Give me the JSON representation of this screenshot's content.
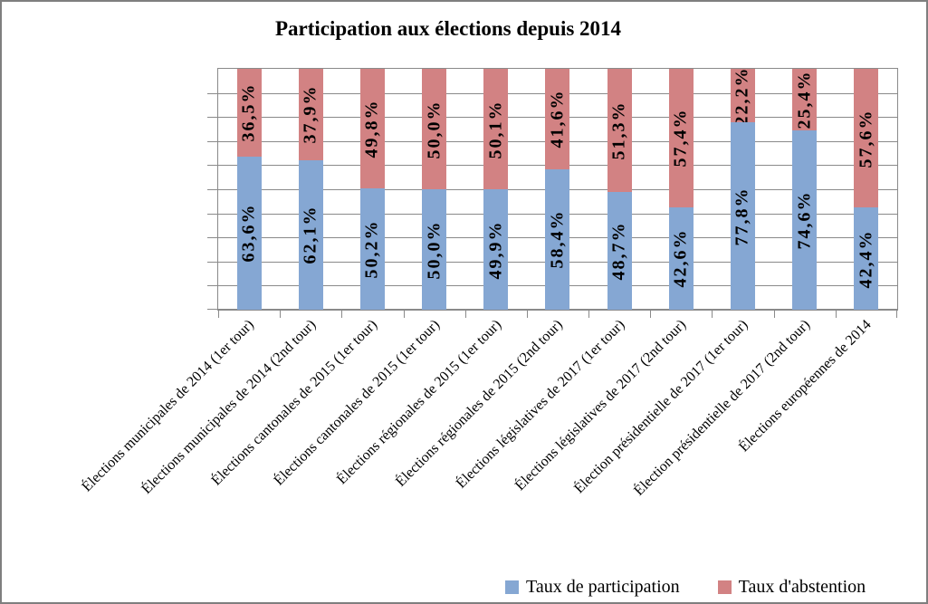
{
  "title": "Participation aux élections depuis 2014",
  "legend": [
    {
      "label": "Taux de participation",
      "color": "#85a7d3"
    },
    {
      "label": "Taux d'abstention",
      "color": "#d28283"
    }
  ],
  "chart_data": {
    "type": "bar",
    "stacked": true,
    "title": "Participation aux élections depuis 2014",
    "xlabel": "",
    "ylabel": "",
    "ylim": [
      0,
      100
    ],
    "gridline_step": 10,
    "grid": true,
    "legend_position": "bottom",
    "categories": [
      "Élections municipales de 2014 (1er tour)",
      "Élections municipales de 2014 (2nd tour)",
      "Élections cantonales de 2015 (1er tour)",
      "Élections cantonales de 2015 (1er tour)",
      "Élections régionales de 2015 (1er tour)",
      "Élections régionales de 2015 (2nd tour)",
      "Élections législatives de 2017 (1er tour)",
      "Élections législatives de 2017 (2nd tour)",
      "Élection présidentielle de 2017 (1er tour)",
      "Élection présidentielle de 2017 (2nd tour)",
      "Élections européennes de 2014"
    ],
    "series": [
      {
        "name": "Taux de participation",
        "color": "#85a7d3",
        "values": [
          63.6,
          62.1,
          50.2,
          50.0,
          49.9,
          58.4,
          48.7,
          42.6,
          77.8,
          74.6,
          42.4
        ],
        "labels": [
          "63,6%",
          "62,1%",
          "50,2%",
          "50,0%",
          "49,9%",
          "58,4%",
          "48,7%",
          "42,6%",
          "77,8%",
          "74,6%",
          "42,4%"
        ]
      },
      {
        "name": "Taux d'abstention",
        "color": "#d28283",
        "values": [
          36.5,
          37.9,
          49.8,
          50.0,
          50.1,
          41.6,
          51.3,
          57.4,
          22.2,
          25.4,
          57.6
        ],
        "labels": [
          "36,5%",
          "37,9%",
          "49,8%",
          "50,0%",
          "50,1%",
          "41,6%",
          "51,3%",
          "57,4%",
          "22,2%",
          "25,4%",
          "57,6%"
        ]
      }
    ],
    "colors": {
      "gridline": "#8a8a8a",
      "plot_border": "#8a8a8a",
      "frame_border": "#7f7f7f"
    }
  }
}
